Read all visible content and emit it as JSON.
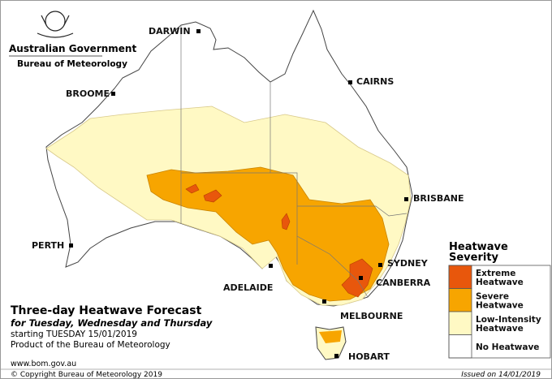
{
  "header": {
    "government": "Australian Government",
    "agency": "Bureau of Meteorology"
  },
  "cities": [
    "DARWIN",
    "CAIRNS",
    "BROOME",
    "BRISBANE",
    "PERTH",
    "SYDNEY",
    "CANBERRA",
    "ADELAIDE",
    "MELBOURNE",
    "HOBART"
  ],
  "caption": {
    "title": "Three-day Heatwave Forecast",
    "subtitle": "for Tuesday, Wednesday and Thursday",
    "start": "starting TUESDAY 15/01/2019",
    "product": "Product of the Bureau of Meteorology",
    "website": "www.bom.gov.au"
  },
  "legend": {
    "title": [
      "Heatwave",
      "Severity"
    ],
    "items": [
      {
        "lines": [
          "Extreme",
          "Heatwave"
        ],
        "color": "#e8570c"
      },
      {
        "lines": [
          "Severe",
          "Heatwave"
        ],
        "color": "#f7a500"
      },
      {
        "lines": [
          "Low-Intensity",
          "Heatwave"
        ],
        "color": "#fff9c4"
      },
      {
        "lines": [
          "No Heatwave"
        ],
        "color": "#ffffff"
      }
    ]
  },
  "footer": {
    "copyright": "© Copyright Bureau of Meteorology 2019",
    "issued": "Issued on 14/01/2019"
  }
}
